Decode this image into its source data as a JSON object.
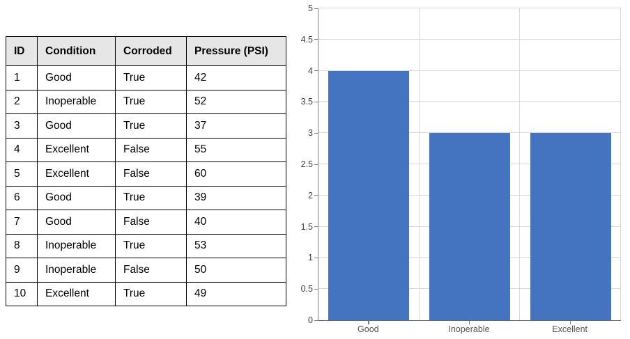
{
  "table": {
    "columns": [
      "ID",
      "Condition",
      "Corroded",
      "Pressure (PSI)"
    ],
    "rows": [
      [
        "1",
        "Good",
        "True",
        "42"
      ],
      [
        "2",
        "Inoperable",
        "True",
        "52"
      ],
      [
        "3",
        "Good",
        "True",
        "37"
      ],
      [
        "4",
        "Excellent",
        "False",
        "55"
      ],
      [
        "5",
        "Excellent",
        "False",
        "60"
      ],
      [
        "6",
        "Good",
        "True",
        "39"
      ],
      [
        "7",
        "Good",
        "False",
        "40"
      ],
      [
        "8",
        "Inoperable",
        "True",
        "53"
      ],
      [
        "9",
        "Inoperable",
        "False",
        "50"
      ],
      [
        "10",
        "Excellent",
        "True",
        "49"
      ]
    ],
    "header_bg": "#E7E6E6",
    "border_color": "#000000"
  },
  "chart_data": {
    "type": "bar",
    "categories": [
      "Good",
      "Inoperable",
      "Excellent"
    ],
    "values": [
      4,
      3,
      3
    ],
    "title": "",
    "xlabel": "",
    "ylabel": "",
    "ylim": [
      0,
      5
    ],
    "ytick_step": 0.5,
    "bar_fraction": 0.8,
    "grid": true,
    "legend": "none",
    "bar_color": "#4473C0",
    "gridline_color": "#D9D9D9",
    "axis_color": "#7f7f7f",
    "ytick_label_color": "#404040",
    "xtick_label_color": "#555555"
  }
}
